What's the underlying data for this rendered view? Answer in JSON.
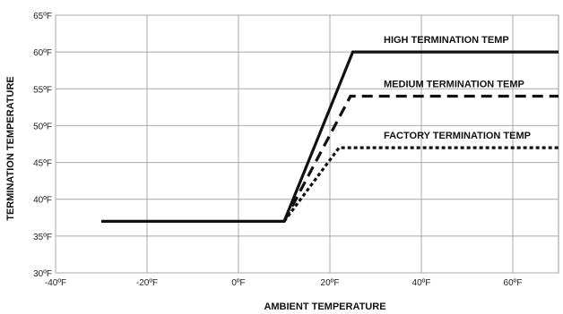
{
  "chart_data": {
    "type": "line",
    "xlabel": "AMBIENT TEMPERATURE",
    "ylabel": "TERMINATION TEMPERATURE",
    "xlim": [
      -40,
      70
    ],
    "ylim": [
      30,
      65
    ],
    "x_ticks": [
      -40,
      -20,
      0,
      20,
      40,
      60
    ],
    "x_tick_labels": [
      "-40ºF",
      "-20ºF",
      "0ºF",
      "20ºF",
      "40ºF",
      "60ºF"
    ],
    "y_ticks": [
      30,
      35,
      40,
      45,
      50,
      55,
      60,
      65
    ],
    "y_tick_labels": [
      "30ºF",
      "35ºF",
      "40ºF",
      "45ºF",
      "50ºF",
      "55ºF",
      "60ºF",
      "65ºF"
    ],
    "grid": true,
    "series": [
      {
        "name": "HIGH TERMINATION TEMP",
        "style": "solid",
        "x": [
          -30,
          10,
          25,
          70
        ],
        "y": [
          37,
          37,
          60,
          60
        ]
      },
      {
        "name": "MEDIUM TERMINATION TEMP",
        "style": "dashed",
        "x": [
          10,
          24.5,
          70
        ],
        "y": [
          37,
          54,
          54
        ]
      },
      {
        "name": "FACTORY TERMINATION TEMP",
        "style": "dotted",
        "x": [
          10,
          22,
          70
        ],
        "y": [
          37,
          47,
          47
        ]
      }
    ]
  }
}
